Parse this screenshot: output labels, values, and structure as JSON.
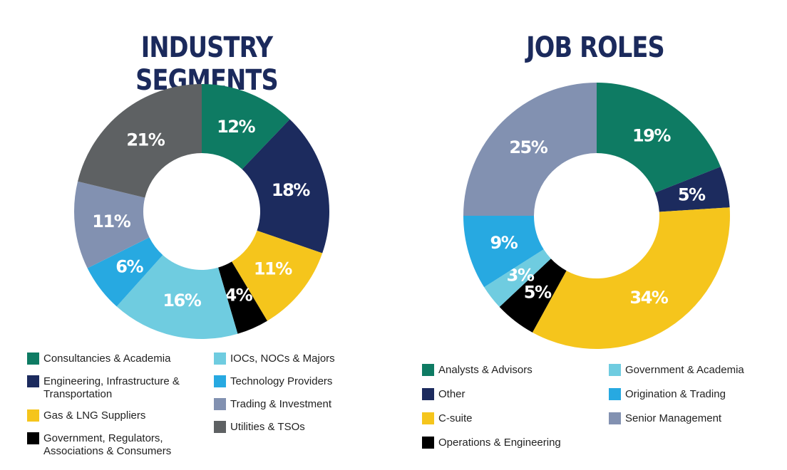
{
  "charts": [
    {
      "title": "INDUSTRY SEGMENTS",
      "legend": [
        {
          "label": "Consultancies & Academia",
          "color": "#0e7b63"
        },
        {
          "label": "Engineering, Infrastructure & Transportation",
          "color": "#1c2b5e"
        },
        {
          "label": "Gas & LNG Suppliers",
          "color": "#f5c51c"
        },
        {
          "label": "Government, Regulators, Associations & Consumers",
          "color": "#000000"
        },
        {
          "label": "IOCs, NOCs & Majors",
          "color": "#6fcce0"
        },
        {
          "label": "Technology Providers",
          "color": "#27a9e1"
        },
        {
          "label": "Trading & Investment",
          "color": "#8291b1"
        },
        {
          "label": "Utilities & TSOs",
          "color": "#5e6163"
        }
      ]
    },
    {
      "title": "JOB ROLES",
      "legend": [
        {
          "label": "Analysts & Advisors",
          "color": "#0e7b63"
        },
        {
          "label": "Other",
          "color": "#1c2b5e"
        },
        {
          "label": "C-suite",
          "color": "#f5c51c"
        },
        {
          "label": "Operations & Engineering",
          "color": "#000000"
        },
        {
          "label": "Government & Academia",
          "color": "#6fcce0"
        },
        {
          "label": "Origination & Trading",
          "color": "#27a9e1"
        },
        {
          "label": "Senior Management",
          "color": "#8291b1"
        }
      ]
    }
  ],
  "chart_data": [
    {
      "type": "pie",
      "title": "INDUSTRY SEGMENTS",
      "slices": [
        {
          "name": "Consultancies & Academia",
          "value": 12,
          "label": "12%",
          "color": "#0e7b63"
        },
        {
          "name": "Engineering, Infrastructure & Transportation",
          "value": 18,
          "label": "18%",
          "color": "#1c2b5e"
        },
        {
          "name": "Gas & LNG Suppliers",
          "value": 11,
          "label": "11%",
          "color": "#f5c51c"
        },
        {
          "name": "Government, Regulators, Associations & Consumers",
          "value": 4,
          "label": "4%",
          "color": "#000000"
        },
        {
          "name": "IOCs, NOCs & Majors",
          "value": 16,
          "label": "16%",
          "color": "#6fcce0"
        },
        {
          "name": "Technology Providers",
          "value": 6,
          "label": "6%",
          "color": "#27a9e1"
        },
        {
          "name": "Trading & Investment",
          "value": 11,
          "label": "11%",
          "color": "#8291b1"
        },
        {
          "name": "Utilities & TSOs",
          "value": 21,
          "label": "21%",
          "color": "#5e6163"
        }
      ],
      "legend_position": "bottom"
    },
    {
      "type": "pie",
      "title": "JOB ROLES",
      "slices": [
        {
          "name": "Analysts & Advisors",
          "value": 19,
          "label": "19%",
          "color": "#0e7b63"
        },
        {
          "name": "Other",
          "value": 5,
          "label": "5%",
          "color": "#1c2b5e"
        },
        {
          "name": "C-suite",
          "value": 34,
          "label": "34%",
          "color": "#f5c51c"
        },
        {
          "name": "Operations & Engineering",
          "value": 5,
          "label": "5%",
          "color": "#000000"
        },
        {
          "name": "Government & Academia",
          "value": 3,
          "label": "3%",
          "color": "#6fcce0"
        },
        {
          "name": "Origination & Trading",
          "value": 9,
          "label": "9%",
          "color": "#27a9e1"
        },
        {
          "name": "Senior Management",
          "value": 25,
          "label": "25%",
          "color": "#8291b1"
        }
      ],
      "legend_position": "bottom"
    }
  ]
}
